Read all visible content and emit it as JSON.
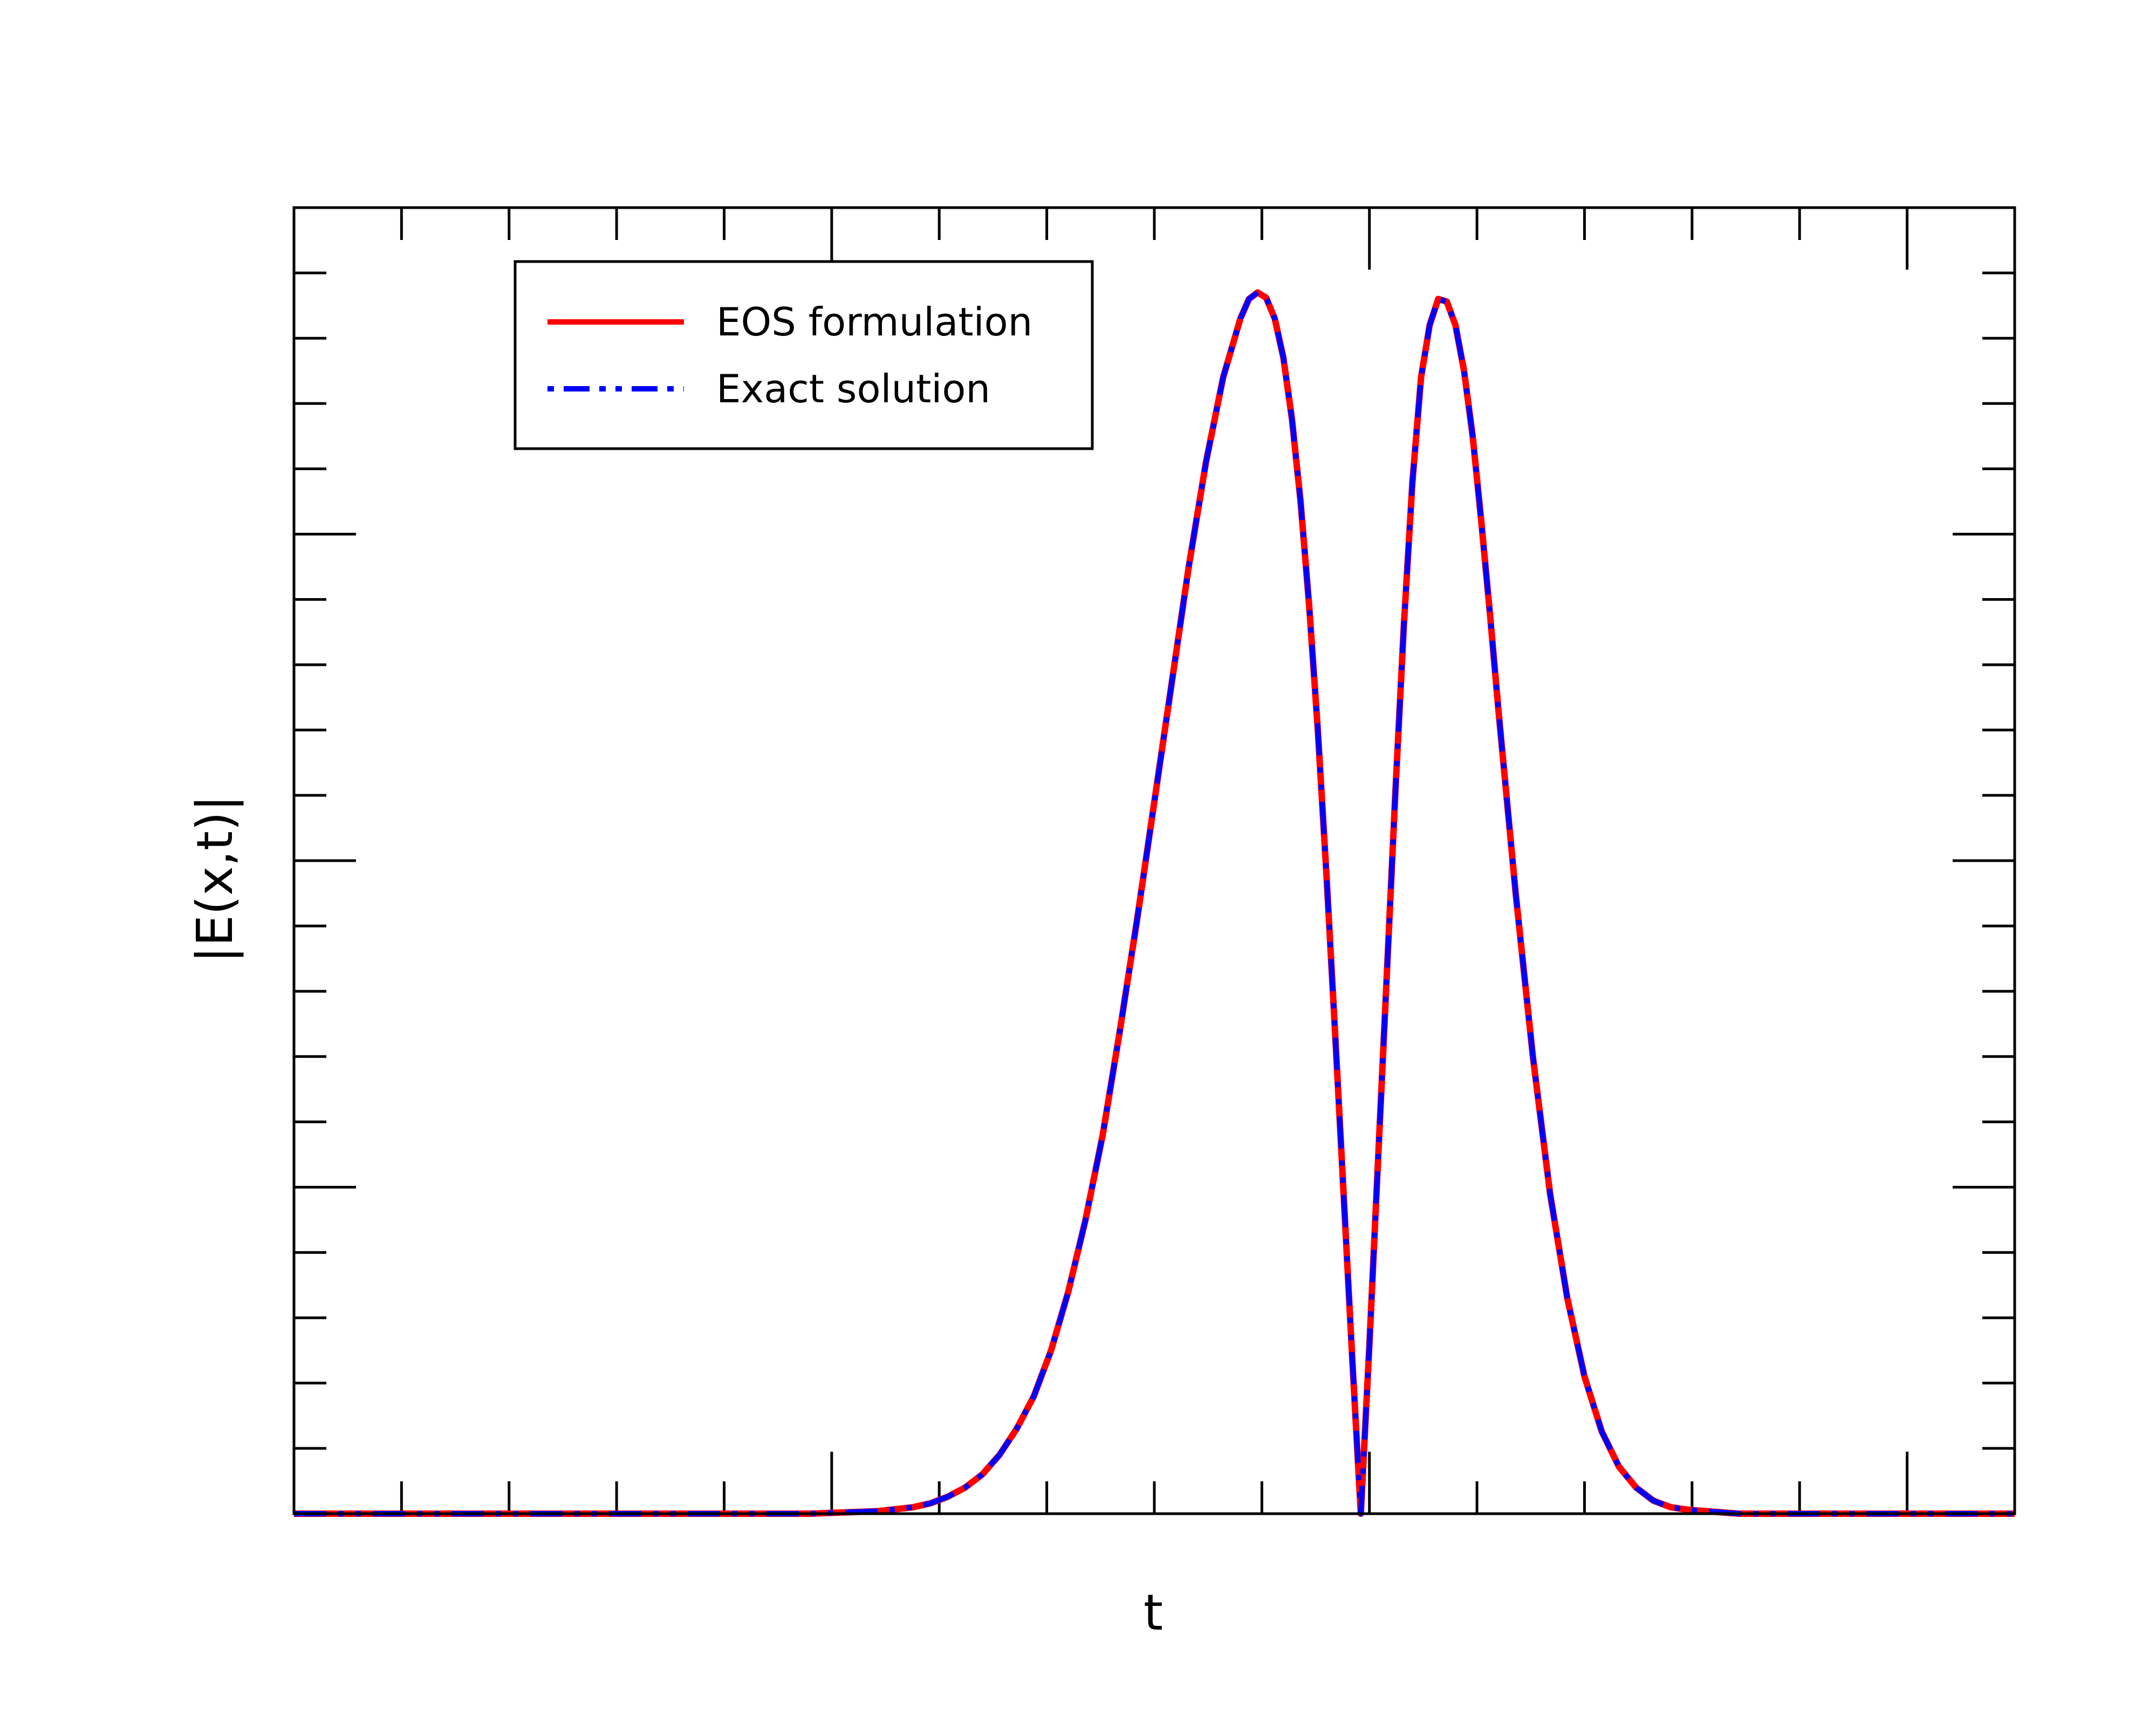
{
  "chart_data": {
    "type": "line",
    "title": "",
    "xlabel": "t",
    "ylabel": "|E(x,t)|",
    "xlim": [
      0,
      1
    ],
    "ylim": [
      0,
      1
    ],
    "xticks": {
      "major": [
        0.0,
        0.3125,
        0.625,
        0.9375
      ],
      "minor_count": 16
    },
    "yticks": {
      "major": [
        0.0,
        0.25,
        0.5,
        0.75,
        1.0
      ],
      "minor_count": 20
    },
    "tick_labels_shown": false,
    "grid": false,
    "legend": {
      "placement": "top-left"
    },
    "series": [
      {
        "name": "EOS formulation",
        "color": "#ff0000",
        "style": "solid",
        "x": [
          0.0,
          0.3,
          0.32,
          0.34,
          0.36,
          0.37,
          0.38,
          0.39,
          0.4,
          0.41,
          0.42,
          0.43,
          0.44,
          0.45,
          0.46,
          0.47,
          0.48,
          0.49,
          0.5,
          0.51,
          0.52,
          0.53,
          0.54,
          0.55,
          0.555,
          0.56,
          0.565,
          0.57,
          0.575,
          0.58,
          0.585,
          0.59,
          0.595,
          0.6,
          0.605,
          0.61,
          0.615,
          0.62,
          0.625,
          0.63,
          0.635,
          0.64,
          0.645,
          0.65,
          0.655,
          0.66,
          0.665,
          0.67,
          0.675,
          0.68,
          0.685,
          0.69,
          0.695,
          0.7,
          0.71,
          0.72,
          0.73,
          0.74,
          0.75,
          0.76,
          0.77,
          0.78,
          0.79,
          0.8,
          0.81,
          0.82,
          0.83,
          0.84,
          0.86,
          0.88,
          0.9,
          0.95,
          1.0
        ],
        "y": [
          0.0,
          0.0,
          0.001,
          0.002,
          0.005,
          0.008,
          0.013,
          0.02,
          0.03,
          0.045,
          0.065,
          0.09,
          0.125,
          0.17,
          0.225,
          0.29,
          0.37,
          0.455,
          0.545,
          0.635,
          0.725,
          0.805,
          0.87,
          0.915,
          0.93,
          0.935,
          0.931,
          0.915,
          0.885,
          0.838,
          0.775,
          0.695,
          0.6,
          0.49,
          0.37,
          0.245,
          0.12,
          0.0,
          0.13,
          0.27,
          0.41,
          0.55,
          0.68,
          0.79,
          0.87,
          0.91,
          0.93,
          0.928,
          0.91,
          0.875,
          0.825,
          0.76,
          0.69,
          0.615,
          0.475,
          0.35,
          0.245,
          0.165,
          0.105,
          0.063,
          0.036,
          0.02,
          0.01,
          0.005,
          0.003,
          0.002,
          0.001,
          0.0,
          0.0,
          0.0,
          0.0,
          0.0,
          0.0
        ]
      },
      {
        "name": "Exact solution",
        "color": "#0000ff",
        "style": "dash-dot",
        "x": [
          0.0,
          0.3,
          0.32,
          0.34,
          0.36,
          0.37,
          0.38,
          0.39,
          0.4,
          0.41,
          0.42,
          0.43,
          0.44,
          0.45,
          0.46,
          0.47,
          0.48,
          0.49,
          0.5,
          0.51,
          0.52,
          0.53,
          0.54,
          0.55,
          0.555,
          0.56,
          0.565,
          0.57,
          0.575,
          0.58,
          0.585,
          0.59,
          0.595,
          0.6,
          0.605,
          0.61,
          0.615,
          0.62,
          0.625,
          0.63,
          0.635,
          0.64,
          0.645,
          0.65,
          0.655,
          0.66,
          0.665,
          0.67,
          0.675,
          0.68,
          0.685,
          0.69,
          0.695,
          0.7,
          0.71,
          0.72,
          0.73,
          0.74,
          0.75,
          0.76,
          0.77,
          0.78,
          0.79,
          0.8,
          0.81,
          0.82,
          0.83,
          0.84,
          0.86,
          0.88,
          0.9,
          0.95,
          1.0
        ],
        "y": [
          0.0,
          0.0,
          0.001,
          0.002,
          0.005,
          0.008,
          0.013,
          0.02,
          0.03,
          0.045,
          0.065,
          0.09,
          0.125,
          0.17,
          0.225,
          0.29,
          0.37,
          0.455,
          0.545,
          0.635,
          0.725,
          0.805,
          0.87,
          0.915,
          0.93,
          0.935,
          0.931,
          0.915,
          0.885,
          0.838,
          0.775,
          0.695,
          0.6,
          0.49,
          0.37,
          0.245,
          0.12,
          0.0,
          0.13,
          0.27,
          0.41,
          0.55,
          0.68,
          0.79,
          0.87,
          0.91,
          0.93,
          0.928,
          0.91,
          0.875,
          0.825,
          0.76,
          0.69,
          0.615,
          0.475,
          0.35,
          0.245,
          0.165,
          0.105,
          0.063,
          0.036,
          0.02,
          0.01,
          0.005,
          0.003,
          0.002,
          0.001,
          0.0,
          0.0,
          0.0,
          0.0,
          0.0,
          0.0
        ]
      }
    ]
  }
}
